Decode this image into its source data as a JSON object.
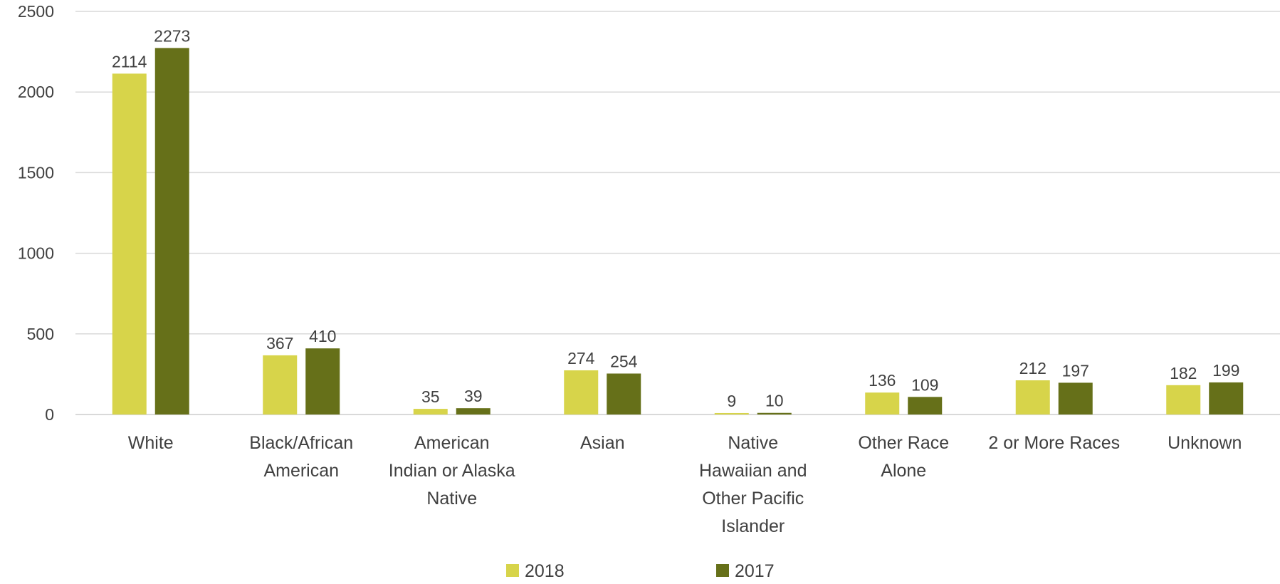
{
  "chart_data": {
    "type": "bar",
    "title": "",
    "xlabel": "",
    "ylabel": "",
    "ylim": [
      0,
      2500
    ],
    "yticks": [
      0,
      500,
      1000,
      1500,
      2000,
      2500
    ],
    "grid": true,
    "legend_position": "bottom",
    "categories": [
      [
        "White"
      ],
      [
        "Black/African",
        "American"
      ],
      [
        "American",
        "Indian or Alaska",
        "Native"
      ],
      [
        "Asian"
      ],
      [
        "Native",
        "Hawaiian and",
        "Other Pacific",
        "Islander"
      ],
      [
        "Other Race",
        "Alone"
      ],
      [
        "2 or More Races"
      ],
      [
        "Unknown"
      ]
    ],
    "series": [
      {
        "name": "2018",
        "color": "#D7D44A",
        "values": [
          2114,
          367,
          35,
          274,
          9,
          136,
          212,
          182
        ]
      },
      {
        "name": "2017",
        "color": "#667019",
        "values": [
          2273,
          410,
          39,
          254,
          10,
          109,
          197,
          199
        ]
      }
    ]
  }
}
